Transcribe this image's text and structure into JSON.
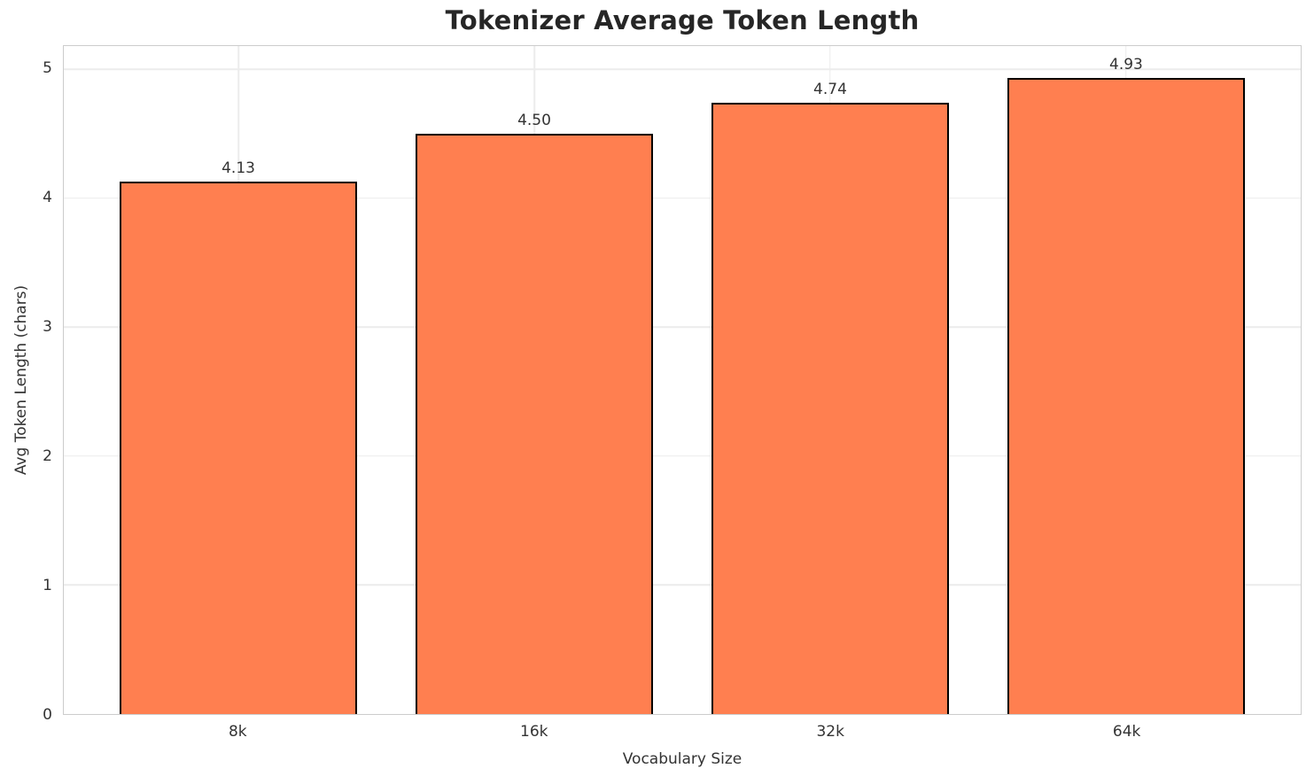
{
  "figure": {
    "background": "#ffffff"
  },
  "chart_data": {
    "type": "bar",
    "title": "Tokenizer Average Token Length",
    "xlabel": "Vocabulary Size",
    "ylabel": "Avg Token Length (chars)",
    "categories": [
      "8k",
      "16k",
      "32k",
      "64k"
    ],
    "values": [
      4.13,
      4.5,
      4.74,
      4.93
    ],
    "value_labels": [
      "4.13",
      "4.50",
      "4.74",
      "4.93"
    ],
    "yticks": [
      0,
      1,
      2,
      3,
      4,
      5
    ],
    "ylim": [
      0,
      5.18
    ],
    "xlim": [
      -0.59,
      3.59
    ],
    "bar_width": 0.8,
    "grid": true,
    "legend": false,
    "colors": {
      "bar_fill": "#FF7F50",
      "bar_edge": "#000000",
      "grid": "#ececec",
      "spine": "#cccccc",
      "tick_text": "#333333",
      "title_text": "#262626",
      "background": "#ffffff"
    }
  }
}
